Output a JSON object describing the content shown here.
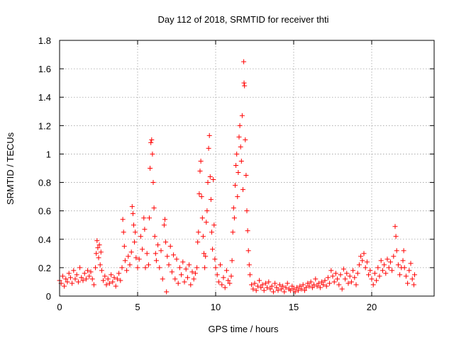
{
  "chart_data": {
    "type": "scatter",
    "title": "Day 112 of 2018, SRMTID for receiver thti",
    "xlabel": "GPS time / hours",
    "ylabel": "SRMTID / TECUs",
    "xlim": [
      0,
      24
    ],
    "ylim": [
      0,
      1.8
    ],
    "x_ticks": [
      0,
      5,
      10,
      15,
      20
    ],
    "x_tick_labels": [
      "0",
      "5",
      "10",
      "15",
      "20"
    ],
    "y_ticks": [
      0,
      0.2,
      0.4,
      0.6,
      0.8,
      1,
      1.2,
      1.4,
      1.6,
      1.8
    ],
    "y_tick_labels": [
      "0",
      "0.2",
      "0.4",
      "0.6",
      "0.8",
      "1",
      "1.2",
      "1.4",
      "1.6",
      "1.8"
    ],
    "grid": true,
    "marker": "+",
    "marker_color": "#ff0000",
    "series": [
      {
        "name": "SRMTID",
        "points": [
          [
            0.0,
            0.11
          ],
          [
            0.1,
            0.09
          ],
          [
            0.2,
            0.14
          ],
          [
            0.3,
            0.07
          ],
          [
            0.4,
            0.12
          ],
          [
            0.5,
            0.1
          ],
          [
            0.6,
            0.16
          ],
          [
            0.7,
            0.13
          ],
          [
            0.8,
            0.09
          ],
          [
            0.9,
            0.18
          ],
          [
            1.0,
            0.12
          ],
          [
            1.1,
            0.15
          ],
          [
            1.2,
            0.1
          ],
          [
            1.3,
            0.2
          ],
          [
            1.4,
            0.13
          ],
          [
            1.5,
            0.11
          ],
          [
            1.6,
            0.16
          ],
          [
            1.7,
            0.12
          ],
          [
            1.8,
            0.18
          ],
          [
            1.9,
            0.14
          ],
          [
            2.0,
            0.17
          ],
          [
            2.1,
            0.12
          ],
          [
            2.2,
            0.08
          ],
          [
            2.3,
            0.2
          ],
          [
            2.35,
            0.3
          ],
          [
            2.4,
            0.39
          ],
          [
            2.45,
            0.34
          ],
          [
            2.5,
            0.27
          ],
          [
            2.55,
            0.36
          ],
          [
            2.6,
            0.22
          ],
          [
            2.65,
            0.31
          ],
          [
            2.7,
            0.18
          ],
          [
            2.8,
            0.11
          ],
          [
            2.9,
            0.14
          ],
          [
            3.0,
            0.08
          ],
          [
            3.1,
            0.12
          ],
          [
            3.2,
            0.09
          ],
          [
            3.3,
            0.15
          ],
          [
            3.4,
            0.1
          ],
          [
            3.5,
            0.13
          ],
          [
            3.6,
            0.07
          ],
          [
            3.7,
            0.12
          ],
          [
            3.8,
            0.16
          ],
          [
            3.9,
            0.11
          ],
          [
            4.0,
            0.2
          ],
          [
            4.05,
            0.54
          ],
          [
            4.1,
            0.45
          ],
          [
            4.15,
            0.35
          ],
          [
            4.2,
            0.25
          ],
          [
            4.3,
            0.18
          ],
          [
            4.4,
            0.28
          ],
          [
            4.5,
            0.22
          ],
          [
            4.6,
            0.31
          ],
          [
            4.65,
            0.63
          ],
          [
            4.7,
            0.58
          ],
          [
            4.75,
            0.5
          ],
          [
            4.8,
            0.38
          ],
          [
            4.85,
            0.45
          ],
          [
            4.9,
            0.27
          ],
          [
            5.0,
            0.2
          ],
          [
            5.1,
            0.26
          ],
          [
            5.2,
            0.42
          ],
          [
            5.3,
            0.33
          ],
          [
            5.4,
            0.55
          ],
          [
            5.45,
            0.47
          ],
          [
            5.5,
            0.2
          ],
          [
            5.6,
            0.3
          ],
          [
            5.7,
            0.22
          ],
          [
            5.75,
            0.55
          ],
          [
            5.8,
            0.9
          ],
          [
            5.85,
            1.08
          ],
          [
            5.9,
            1.1
          ],
          [
            5.95,
            1.0
          ],
          [
            6.0,
            0.8
          ],
          [
            6.05,
            0.62
          ],
          [
            6.1,
            0.42
          ],
          [
            6.15,
            0.3
          ],
          [
            6.2,
            0.25
          ],
          [
            6.3,
            0.36
          ],
          [
            6.4,
            0.2
          ],
          [
            6.5,
            0.32
          ],
          [
            6.6,
            0.12
          ],
          [
            6.7,
            0.5
          ],
          [
            6.75,
            0.54
          ],
          [
            6.8,
            0.38
          ],
          [
            6.85,
            0.03
          ],
          [
            6.9,
            0.28
          ],
          [
            7.0,
            0.22
          ],
          [
            7.1,
            0.35
          ],
          [
            7.2,
            0.17
          ],
          [
            7.3,
            0.29
          ],
          [
            7.4,
            0.12
          ],
          [
            7.5,
            0.26
          ],
          [
            7.6,
            0.09
          ],
          [
            7.7,
            0.2
          ],
          [
            7.8,
            0.15
          ],
          [
            7.9,
            0.24
          ],
          [
            8.0,
            0.1
          ],
          [
            8.1,
            0.19
          ],
          [
            8.2,
            0.13
          ],
          [
            8.3,
            0.22
          ],
          [
            8.4,
            0.08
          ],
          [
            8.5,
            0.17
          ],
          [
            8.6,
            0.12
          ],
          [
            8.7,
            0.16
          ],
          [
            8.8,
            0.2
          ],
          [
            8.85,
            0.38
          ],
          [
            8.9,
            0.45
          ],
          [
            8.95,
            0.72
          ],
          [
            9.0,
            0.88
          ],
          [
            9.05,
            0.95
          ],
          [
            9.1,
            0.7
          ],
          [
            9.15,
            0.55
          ],
          [
            9.2,
            0.42
          ],
          [
            9.25,
            0.3
          ],
          [
            9.3,
            0.2
          ],
          [
            9.35,
            0.28
          ],
          [
            9.4,
            0.52
          ],
          [
            9.45,
            0.6
          ],
          [
            9.5,
            0.8
          ],
          [
            9.55,
            1.04
          ],
          [
            9.6,
            1.13
          ],
          [
            9.65,
            0.84
          ],
          [
            9.7,
            0.68
          ],
          [
            9.75,
            0.45
          ],
          [
            9.8,
            0.33
          ],
          [
            9.85,
            0.82
          ],
          [
            9.9,
            0.5
          ],
          [
            9.95,
            0.26
          ],
          [
            10.0,
            0.2
          ],
          [
            10.1,
            0.15
          ],
          [
            10.2,
            0.1
          ],
          [
            10.3,
            0.22
          ],
          [
            10.4,
            0.08
          ],
          [
            10.5,
            0.13
          ],
          [
            10.6,
            0.06
          ],
          [
            10.7,
            0.18
          ],
          [
            10.8,
            0.11
          ],
          [
            10.9,
            0.09
          ],
          [
            11.0,
            0.14
          ],
          [
            11.05,
            0.25
          ],
          [
            11.1,
            0.45
          ],
          [
            11.15,
            0.62
          ],
          [
            11.2,
            0.55
          ],
          [
            11.25,
            0.78
          ],
          [
            11.3,
            0.92
          ],
          [
            11.35,
            1.0
          ],
          [
            11.4,
            0.7
          ],
          [
            11.45,
            0.87
          ],
          [
            11.5,
            1.12
          ],
          [
            11.55,
            1.2
          ],
          [
            11.6,
            1.05
          ],
          [
            11.65,
            0.95
          ],
          [
            11.7,
            1.27
          ],
          [
            11.75,
            0.75
          ],
          [
            11.8,
            1.65
          ],
          [
            11.82,
            1.5
          ],
          [
            11.85,
            1.48
          ],
          [
            11.9,
            1.1
          ],
          [
            11.95,
            0.85
          ],
          [
            12.0,
            0.6
          ],
          [
            12.05,
            0.46
          ],
          [
            12.1,
            0.32
          ],
          [
            12.15,
            0.22
          ],
          [
            12.2,
            0.15
          ],
          [
            12.3,
            0.08
          ],
          [
            12.4,
            0.05
          ],
          [
            12.5,
            0.09
          ],
          [
            12.6,
            0.04
          ],
          [
            12.7,
            0.07
          ],
          [
            12.8,
            0.11
          ],
          [
            12.9,
            0.06
          ],
          [
            13.0,
            0.08
          ],
          [
            13.1,
            0.04
          ],
          [
            13.2,
            0.09
          ],
          [
            13.3,
            0.06
          ],
          [
            13.4,
            0.1
          ],
          [
            13.5,
            0.05
          ],
          [
            13.6,
            0.07
          ],
          [
            13.7,
            0.03
          ],
          [
            13.8,
            0.09
          ],
          [
            13.9,
            0.06
          ],
          [
            14.0,
            0.04
          ],
          [
            14.1,
            0.08
          ],
          [
            14.2,
            0.05
          ],
          [
            14.3,
            0.07
          ],
          [
            14.4,
            0.03
          ],
          [
            14.5,
            0.06
          ],
          [
            14.6,
            0.09
          ],
          [
            14.7,
            0.05
          ],
          [
            14.8,
            0.04
          ],
          [
            14.9,
            0.07
          ],
          [
            15.0,
            0.05
          ],
          [
            15.1,
            0.03
          ],
          [
            15.2,
            0.06
          ],
          [
            15.3,
            0.04
          ],
          [
            15.4,
            0.07
          ],
          [
            15.5,
            0.05
          ],
          [
            15.6,
            0.08
          ],
          [
            15.7,
            0.04
          ],
          [
            15.8,
            0.06
          ],
          [
            15.9,
            0.09
          ],
          [
            16.0,
            0.07
          ],
          [
            16.1,
            0.1
          ],
          [
            16.2,
            0.06
          ],
          [
            16.3,
            0.08
          ],
          [
            16.4,
            0.12
          ],
          [
            16.5,
            0.07
          ],
          [
            16.6,
            0.09
          ],
          [
            16.7,
            0.06
          ],
          [
            16.8,
            0.1
          ],
          [
            16.9,
            0.08
          ],
          [
            17.0,
            0.11
          ],
          [
            17.1,
            0.07
          ],
          [
            17.2,
            0.13
          ],
          [
            17.3,
            0.09
          ],
          [
            17.4,
            0.18
          ],
          [
            17.5,
            0.14
          ],
          [
            17.6,
            0.1
          ],
          [
            17.7,
            0.16
          ],
          [
            17.8,
            0.12
          ],
          [
            17.9,
            0.08
          ],
          [
            18.0,
            0.15
          ],
          [
            18.1,
            0.05
          ],
          [
            18.2,
            0.19
          ],
          [
            18.3,
            0.12
          ],
          [
            18.4,
            0.16
          ],
          [
            18.5,
            0.09
          ],
          [
            18.6,
            0.14
          ],
          [
            18.7,
            0.1
          ],
          [
            18.8,
            0.18
          ],
          [
            18.9,
            0.13
          ],
          [
            19.0,
            0.08
          ],
          [
            19.1,
            0.16
          ],
          [
            19.2,
            0.22
          ],
          [
            19.3,
            0.28
          ],
          [
            19.4,
            0.25
          ],
          [
            19.5,
            0.3
          ],
          [
            19.6,
            0.2
          ],
          [
            19.7,
            0.24
          ],
          [
            19.8,
            0.15
          ],
          [
            19.9,
            0.18
          ],
          [
            20.0,
            0.12
          ],
          [
            20.1,
            0.08
          ],
          [
            20.2,
            0.16
          ],
          [
            20.3,
            0.11
          ],
          [
            20.4,
            0.2
          ],
          [
            20.5,
            0.14
          ],
          [
            20.6,
            0.25
          ],
          [
            20.7,
            0.18
          ],
          [
            20.8,
            0.22
          ],
          [
            20.9,
            0.16
          ],
          [
            21.0,
            0.26
          ],
          [
            21.1,
            0.2
          ],
          [
            21.2,
            0.24
          ],
          [
            21.3,
            0.18
          ],
          [
            21.4,
            0.28
          ],
          [
            21.5,
            0.49
          ],
          [
            21.55,
            0.42
          ],
          [
            21.6,
            0.32
          ],
          [
            21.7,
            0.22
          ],
          [
            21.8,
            0.15
          ],
          [
            21.9,
            0.2
          ],
          [
            22.0,
            0.25
          ],
          [
            22.05,
            0.32
          ],
          [
            22.1,
            0.2
          ],
          [
            22.2,
            0.14
          ],
          [
            22.3,
            0.09
          ],
          [
            22.4,
            0.18
          ],
          [
            22.5,
            0.23
          ],
          [
            22.6,
            0.12
          ],
          [
            22.7,
            0.08
          ],
          [
            22.75,
            0.15
          ]
        ]
      }
    ]
  }
}
